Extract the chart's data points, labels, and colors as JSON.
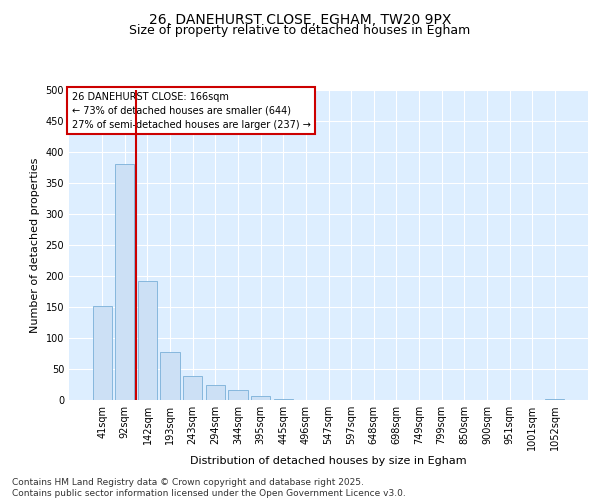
{
  "title": "26, DANEHURST CLOSE, EGHAM, TW20 9PX",
  "subtitle": "Size of property relative to detached houses in Egham",
  "xlabel": "Distribution of detached houses by size in Egham",
  "ylabel": "Number of detached properties",
  "bar_color": "#cce0f5",
  "bar_edge_color": "#7ab0d8",
  "vline_color": "#cc0000",
  "vline_x": 1.5,
  "annotation_title": "26 DANEHURST CLOSE: 166sqm",
  "annotation_line1": "← 73% of detached houses are smaller (644)",
  "annotation_line2": "27% of semi-detached houses are larger (237) →",
  "categories": [
    "41sqm",
    "92sqm",
    "142sqm",
    "193sqm",
    "243sqm",
    "294sqm",
    "344sqm",
    "395sqm",
    "445sqm",
    "496sqm",
    "547sqm",
    "597sqm",
    "648sqm",
    "698sqm",
    "749sqm",
    "799sqm",
    "850sqm",
    "900sqm",
    "951sqm",
    "1001sqm",
    "1052sqm"
  ],
  "values": [
    152,
    381,
    192,
    77,
    38,
    25,
    16,
    6,
    1,
    0,
    0,
    0,
    0,
    0,
    0,
    0,
    0,
    0,
    0,
    0,
    2
  ],
  "ylim": [
    0,
    500
  ],
  "yticks": [
    0,
    50,
    100,
    150,
    200,
    250,
    300,
    350,
    400,
    450,
    500
  ],
  "fig_bg_color": "#ffffff",
  "plot_bg_color": "#ddeeff",
  "footer": "Contains HM Land Registry data © Crown copyright and database right 2025.\nContains public sector information licensed under the Open Government Licence v3.0.",
  "title_fontsize": 10,
  "subtitle_fontsize": 9,
  "axis_label_fontsize": 8,
  "tick_fontsize": 7,
  "footer_fontsize": 6.5
}
